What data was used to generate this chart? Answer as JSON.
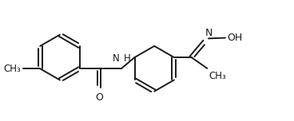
{
  "background_color": "#ffffff",
  "line_color": "#1a1a1a",
  "text_color": "#1a1a1a",
  "line_width": 1.4,
  "font_size": 8.5,
  "figsize": [
    3.68,
    1.52
  ],
  "dpi": 100,
  "xlim": [
    0,
    9.2
  ],
  "ylim": [
    0,
    3.8
  ]
}
